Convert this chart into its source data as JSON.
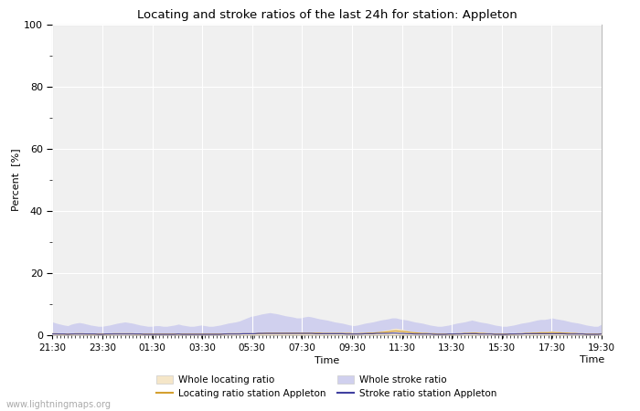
{
  "title": "Locating and stroke ratios of the last 24h for station: Appleton",
  "xlabel": "Time",
  "ylabel": "Percent  [%]",
  "ylim": [
    0,
    100
  ],
  "yticks_major": [
    0,
    20,
    40,
    60,
    80,
    100
  ],
  "yticks_minor": [
    10,
    30,
    50,
    70,
    90
  ],
  "x_labels": [
    "21:30",
    "23:30",
    "01:30",
    "03:30",
    "05:30",
    "07:30",
    "09:30",
    "11:30",
    "13:30",
    "15:30",
    "17:30",
    "19:30"
  ],
  "fig_bg_color": "#ffffff",
  "plot_bg_color": "#f0f0f0",
  "grid_color": "#ffffff",
  "watermark": "www.lightningmaps.org",
  "whole_locating_fill_color": "#f5e6c8",
  "whole_stroke_fill_color": "#d0d0ee",
  "locating_line_color": "#d4a030",
  "stroke_line_color": "#4040a0",
  "legend_labels": [
    "Whole locating ratio",
    "Locating ratio station Appleton",
    "Whole stroke ratio",
    "Stroke ratio station Appleton"
  ],
  "n_points": 145,
  "whole_stroke_ratio": [
    4.2,
    3.8,
    3.5,
    3.2,
    3.0,
    3.5,
    3.8,
    4.0,
    3.8,
    3.5,
    3.2,
    3.0,
    2.8,
    2.8,
    3.0,
    3.2,
    3.5,
    3.8,
    4.0,
    4.2,
    4.0,
    3.8,
    3.5,
    3.2,
    3.0,
    2.8,
    2.8,
    3.0,
    3.0,
    2.8,
    2.8,
    3.0,
    3.2,
    3.5,
    3.2,
    3.0,
    2.8,
    2.8,
    3.0,
    3.2,
    3.0,
    2.8,
    2.8,
    3.0,
    3.2,
    3.5,
    3.8,
    4.0,
    4.2,
    4.5,
    5.0,
    5.5,
    6.0,
    6.2,
    6.5,
    6.8,
    7.0,
    7.2,
    7.0,
    6.8,
    6.5,
    6.2,
    6.0,
    5.8,
    5.5,
    5.5,
    5.8,
    6.0,
    5.8,
    5.5,
    5.2,
    5.0,
    4.8,
    4.5,
    4.2,
    4.0,
    3.8,
    3.5,
    3.2,
    3.0,
    3.2,
    3.5,
    3.8,
    4.0,
    4.2,
    4.5,
    4.8,
    5.0,
    5.2,
    5.5,
    5.5,
    5.2,
    5.0,
    4.8,
    4.5,
    4.2,
    4.0,
    3.8,
    3.5,
    3.2,
    3.0,
    2.8,
    2.8,
    3.0,
    3.2,
    3.5,
    3.8,
    4.0,
    4.2,
    4.5,
    4.8,
    4.5,
    4.2,
    4.0,
    3.8,
    3.5,
    3.2,
    3.0,
    2.8,
    2.8,
    3.0,
    3.2,
    3.5,
    3.8,
    4.0,
    4.2,
    4.5,
    4.8,
    5.0,
    5.0,
    5.2,
    5.5,
    5.2,
    5.0,
    4.8,
    4.5,
    4.2,
    4.0,
    3.8,
    3.5,
    3.2,
    3.0,
    2.8,
    2.8,
    3.5
  ],
  "whole_locating_ratio": [
    0.5,
    0.5,
    0.4,
    0.4,
    0.3,
    0.4,
    0.5,
    0.5,
    0.5,
    0.4,
    0.4,
    0.4,
    0.3,
    0.3,
    0.4,
    0.4,
    0.5,
    0.5,
    0.5,
    0.5,
    0.5,
    0.5,
    0.4,
    0.4,
    0.3,
    0.3,
    0.3,
    0.3,
    0.3,
    0.3,
    0.3,
    0.3,
    0.3,
    0.4,
    0.3,
    0.3,
    0.3,
    0.3,
    0.3,
    0.3,
    0.3,
    0.3,
    0.3,
    0.3,
    0.3,
    0.4,
    0.5,
    0.5,
    0.5,
    0.5,
    0.5,
    0.5,
    0.5,
    0.5,
    0.6,
    0.7,
    0.8,
    0.9,
    0.9,
    0.9,
    0.9,
    0.9,
    0.9,
    0.9,
    0.9,
    0.9,
    0.9,
    0.9,
    0.9,
    0.8,
    0.8,
    0.7,
    0.7,
    0.7,
    0.7,
    0.7,
    0.7,
    0.6,
    0.6,
    0.5,
    0.5,
    0.6,
    0.7,
    0.8,
    0.9,
    1.0,
    1.2,
    1.5,
    1.7,
    2.0,
    2.2,
    2.0,
    1.8,
    1.5,
    1.2,
    1.0,
    0.9,
    0.8,
    0.7,
    0.6,
    0.5,
    0.4,
    0.4,
    0.4,
    0.4,
    0.5,
    0.6,
    0.7,
    0.8,
    0.9,
    1.0,
    1.0,
    0.9,
    0.8,
    0.7,
    0.6,
    0.5,
    0.4,
    0.4,
    0.4,
    0.4,
    0.5,
    0.6,
    0.7,
    0.8,
    0.9,
    1.0,
    1.0,
    1.1,
    1.1,
    1.2,
    1.3,
    1.2,
    1.1,
    1.0,
    0.9,
    0.8,
    0.7,
    0.6,
    0.5,
    0.4,
    0.4,
    0.4,
    0.4,
    0.5
  ],
  "locating_station_ratio": [
    0.4,
    0.4,
    0.3,
    0.3,
    0.3,
    0.3,
    0.4,
    0.4,
    0.4,
    0.3,
    0.3,
    0.3,
    0.3,
    0.3,
    0.3,
    0.3,
    0.4,
    0.4,
    0.4,
    0.4,
    0.4,
    0.4,
    0.3,
    0.3,
    0.3,
    0.3,
    0.3,
    0.3,
    0.3,
    0.3,
    0.3,
    0.3,
    0.3,
    0.3,
    0.3,
    0.3,
    0.3,
    0.3,
    0.3,
    0.3,
    0.3,
    0.3,
    0.3,
    0.3,
    0.3,
    0.3,
    0.4,
    0.4,
    0.4,
    0.4,
    0.4,
    0.4,
    0.4,
    0.4,
    0.5,
    0.5,
    0.6,
    0.6,
    0.6,
    0.6,
    0.6,
    0.6,
    0.6,
    0.6,
    0.6,
    0.6,
    0.6,
    0.6,
    0.6,
    0.6,
    0.6,
    0.5,
    0.5,
    0.5,
    0.5,
    0.5,
    0.5,
    0.5,
    0.5,
    0.4,
    0.4,
    0.5,
    0.5,
    0.6,
    0.6,
    0.7,
    0.8,
    0.9,
    1.0,
    1.2,
    1.3,
    1.2,
    1.1,
    1.0,
    0.8,
    0.7,
    0.6,
    0.5,
    0.5,
    0.4,
    0.4,
    0.3,
    0.3,
    0.3,
    0.3,
    0.3,
    0.4,
    0.4,
    0.5,
    0.5,
    0.6,
    0.6,
    0.5,
    0.5,
    0.4,
    0.4,
    0.3,
    0.3,
    0.3,
    0.3,
    0.3,
    0.3,
    0.4,
    0.4,
    0.5,
    0.5,
    0.6,
    0.6,
    0.7,
    0.7,
    0.7,
    0.8,
    0.7,
    0.7,
    0.6,
    0.6,
    0.5,
    0.5,
    0.4,
    0.4,
    0.3,
    0.3,
    0.3,
    0.3,
    0.4
  ],
  "stroke_station_ratio": [
    0.3,
    0.3,
    0.3,
    0.3,
    0.2,
    0.3,
    0.3,
    0.3,
    0.3,
    0.3,
    0.3,
    0.3,
    0.2,
    0.2,
    0.3,
    0.3,
    0.3,
    0.3,
    0.3,
    0.3,
    0.3,
    0.3,
    0.3,
    0.3,
    0.2,
    0.2,
    0.2,
    0.2,
    0.2,
    0.2,
    0.2,
    0.2,
    0.2,
    0.3,
    0.2,
    0.2,
    0.2,
    0.2,
    0.2,
    0.2,
    0.2,
    0.2,
    0.2,
    0.2,
    0.2,
    0.3,
    0.3,
    0.3,
    0.3,
    0.3,
    0.4,
    0.4,
    0.4,
    0.4,
    0.5,
    0.5,
    0.5,
    0.5,
    0.5,
    0.5,
    0.5,
    0.5,
    0.5,
    0.5,
    0.5,
    0.5,
    0.5,
    0.5,
    0.5,
    0.4,
    0.4,
    0.4,
    0.4,
    0.4,
    0.4,
    0.4,
    0.4,
    0.3,
    0.3,
    0.3,
    0.3,
    0.3,
    0.4,
    0.4,
    0.4,
    0.5,
    0.5,
    0.5,
    0.5,
    0.6,
    0.6,
    0.5,
    0.5,
    0.4,
    0.4,
    0.3,
    0.3,
    0.3,
    0.3,
    0.3,
    0.2,
    0.2,
    0.2,
    0.2,
    0.3,
    0.3,
    0.3,
    0.3,
    0.4,
    0.4,
    0.4,
    0.4,
    0.3,
    0.3,
    0.3,
    0.3,
    0.2,
    0.2,
    0.2,
    0.2,
    0.3,
    0.3,
    0.3,
    0.3,
    0.4,
    0.4,
    0.4,
    0.4,
    0.4,
    0.4,
    0.4,
    0.4,
    0.4,
    0.4,
    0.4,
    0.3,
    0.3,
    0.3,
    0.3,
    0.3,
    0.2,
    0.2,
    0.2,
    0.2,
    0.3
  ]
}
